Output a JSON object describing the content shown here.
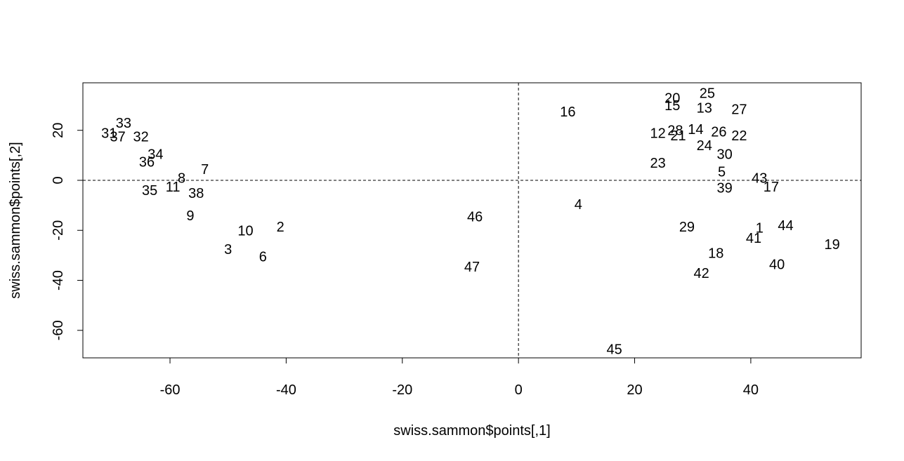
{
  "chart_data": {
    "type": "scatter",
    "title": "",
    "xlabel": "swiss.sammon$points[,1]",
    "ylabel": "swiss.sammon$points[,2]",
    "xlim": [
      -75,
      59
    ],
    "ylim": [
      -71,
      39
    ],
    "xticks": [
      -60,
      -40,
      -20,
      0,
      20,
      40
    ],
    "yticks": [
      -60,
      -40,
      -20,
      0,
      20
    ],
    "reference_lines": {
      "h": 0,
      "v": 0,
      "style": "dashed"
    },
    "grid": false,
    "legend": "none",
    "points": [
      {
        "label": "1",
        "x": 41.5,
        "y": -19
      },
      {
        "label": "2",
        "x": -41,
        "y": -18.5
      },
      {
        "label": "3",
        "x": -50,
        "y": -27.5
      },
      {
        "label": "4",
        "x": 10.3,
        "y": -9.5
      },
      {
        "label": "5",
        "x": 35,
        "y": 3.5
      },
      {
        "label": "6",
        "x": -44,
        "y": -30.5
      },
      {
        "label": "7",
        "x": -54,
        "y": 4.5
      },
      {
        "label": "8",
        "x": -58,
        "y": 1
      },
      {
        "label": "9",
        "x": -56.5,
        "y": -14
      },
      {
        "label": "10",
        "x": -47,
        "y": -20
      },
      {
        "label": "11",
        "x": -59.5,
        "y": -2.5
      },
      {
        "label": "12",
        "x": 24,
        "y": 19
      },
      {
        "label": "13",
        "x": 32,
        "y": 29
      },
      {
        "label": "14",
        "x": 30.5,
        "y": 20.5
      },
      {
        "label": "15",
        "x": 26.5,
        "y": 30
      },
      {
        "label": "16",
        "x": 8.5,
        "y": 27.5
      },
      {
        "label": "17",
        "x": 43.5,
        "y": -2.5
      },
      {
        "label": "18",
        "x": 34,
        "y": -29
      },
      {
        "label": "19",
        "x": 54,
        "y": -25.5
      },
      {
        "label": "20",
        "x": 26.5,
        "y": 33
      },
      {
        "label": "21",
        "x": 27.5,
        "y": 18
      },
      {
        "label": "22",
        "x": 38,
        "y": 18
      },
      {
        "label": "23",
        "x": 24,
        "y": 7
      },
      {
        "label": "24",
        "x": 32,
        "y": 14
      },
      {
        "label": "25",
        "x": 32.5,
        "y": 35
      },
      {
        "label": "26",
        "x": 34.5,
        "y": 19.5
      },
      {
        "label": "27",
        "x": 38,
        "y": 28.5
      },
      {
        "label": "28",
        "x": 27,
        "y": 20
      },
      {
        "label": "29",
        "x": 29,
        "y": -18.5
      },
      {
        "label": "30",
        "x": 35.5,
        "y": 10.5
      },
      {
        "label": "31",
        "x": -70.5,
        "y": 19
      },
      {
        "label": "32",
        "x": -65,
        "y": 17.5
      },
      {
        "label": "33",
        "x": -68,
        "y": 23
      },
      {
        "label": "34",
        "x": -62.5,
        "y": 10.5
      },
      {
        "label": "35",
        "x": -63.5,
        "y": -4
      },
      {
        "label": "36",
        "x": -64,
        "y": 7.5
      },
      {
        "label": "37",
        "x": -69,
        "y": 17.5
      },
      {
        "label": "38",
        "x": -55.5,
        "y": -5
      },
      {
        "label": "39",
        "x": 35.5,
        "y": -3
      },
      {
        "label": "40",
        "x": 44.5,
        "y": -33.5
      },
      {
        "label": "41",
        "x": 40.5,
        "y": -23
      },
      {
        "label": "42",
        "x": 31.5,
        "y": -37
      },
      {
        "label": "43",
        "x": 41.5,
        "y": 1
      },
      {
        "label": "44",
        "x": 46,
        "y": -18
      },
      {
        "label": "45",
        "x": 16.5,
        "y": -67.5
      },
      {
        "label": "46",
        "x": -7.5,
        "y": -14.5
      },
      {
        "label": "47",
        "x": -8,
        "y": -34.5
      }
    ]
  }
}
